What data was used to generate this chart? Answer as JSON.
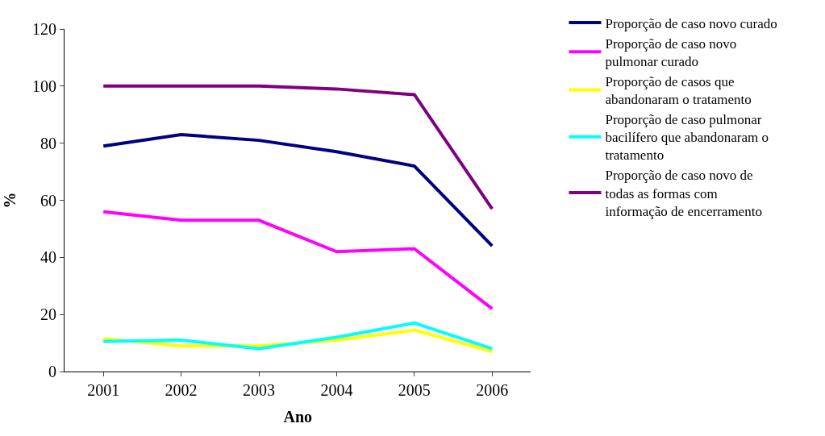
{
  "chart_data": {
    "type": "line",
    "xlabel": "Ano",
    "ylabel": "%",
    "categories": [
      "2001",
      "2002",
      "2003",
      "2004",
      "2005",
      "2006"
    ],
    "series": [
      {
        "name": "Proporção de caso novo curado",
        "color": "#000080",
        "values": [
          79,
          83,
          81,
          77,
          72,
          44
        ]
      },
      {
        "name": "Proporção de caso novo pulmonar curado",
        "color": "#ff00ff",
        "values": [
          56,
          53,
          53,
          42,
          43,
          22
        ]
      },
      {
        "name": "Proporção de casos que abandonaram o tratamento",
        "color": "#ffff00",
        "values": [
          11.5,
          9,
          9,
          11,
          14.5,
          7
        ]
      },
      {
        "name": "Proporção de caso pulmonar bacilífero que abandonaram o tratamento",
        "color": "#00ffff",
        "values": [
          10.5,
          11,
          8,
          12,
          17,
          8
        ]
      },
      {
        "name": "Proporção de caso novo de todas as formas com informação de encerramento",
        "color": "#800080",
        "values": [
          100,
          100,
          100,
          99,
          97,
          57
        ]
      }
    ],
    "ylim": [
      0,
      120
    ],
    "yticks": [
      0,
      20,
      40,
      60,
      80,
      100,
      120
    ],
    "legend": "right",
    "marker": "none",
    "line_style": "solid"
  }
}
